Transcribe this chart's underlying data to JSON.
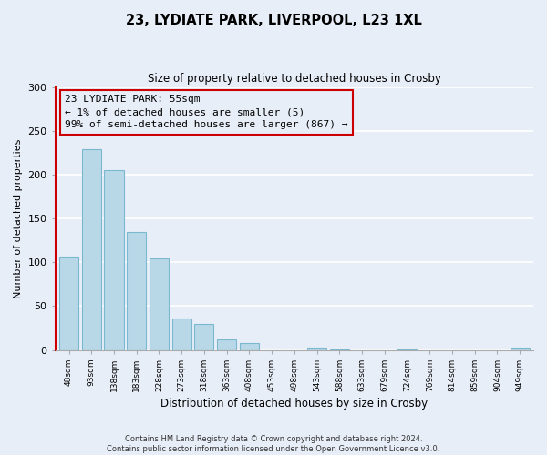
{
  "title": "23, LYDIATE PARK, LIVERPOOL, L23 1XL",
  "subtitle": "Size of property relative to detached houses in Crosby",
  "xlabel": "Distribution of detached houses by size in Crosby",
  "ylabel": "Number of detached properties",
  "bar_labels": [
    "48sqm",
    "93sqm",
    "138sqm",
    "183sqm",
    "228sqm",
    "273sqm",
    "318sqm",
    "363sqm",
    "408sqm",
    "453sqm",
    "498sqm",
    "543sqm",
    "588sqm",
    "633sqm",
    "679sqm",
    "724sqm",
    "769sqm",
    "814sqm",
    "859sqm",
    "904sqm",
    "949sqm"
  ],
  "bar_values": [
    107,
    229,
    205,
    135,
    104,
    36,
    30,
    12,
    8,
    0,
    0,
    3,
    1,
    0,
    0,
    1,
    0,
    0,
    0,
    0,
    3
  ],
  "highlight_bar_index": 0,
  "bar_color": "#b8d8e8",
  "normal_edge_color": "#7ab8d0",
  "highlight_edge_color": "#cc0000",
  "ylim": [
    0,
    300
  ],
  "yticks": [
    0,
    50,
    100,
    150,
    200,
    250,
    300
  ],
  "annotation_title": "23 LYDIATE PARK: 55sqm",
  "annotation_line1": "← 1% of detached houses are smaller (5)",
  "annotation_line2": "99% of semi-detached houses are larger (867) →",
  "footer_line1": "Contains HM Land Registry data © Crown copyright and database right 2024.",
  "footer_line2": "Contains public sector information licensed under the Open Government Licence v3.0.",
  "bg_color": "#e8eef8",
  "plot_bg_color": "#e8eef8",
  "grid_color": "#ffffff",
  "annotation_box_edge": "#cc0000",
  "left_spine_color": "#cc0000"
}
